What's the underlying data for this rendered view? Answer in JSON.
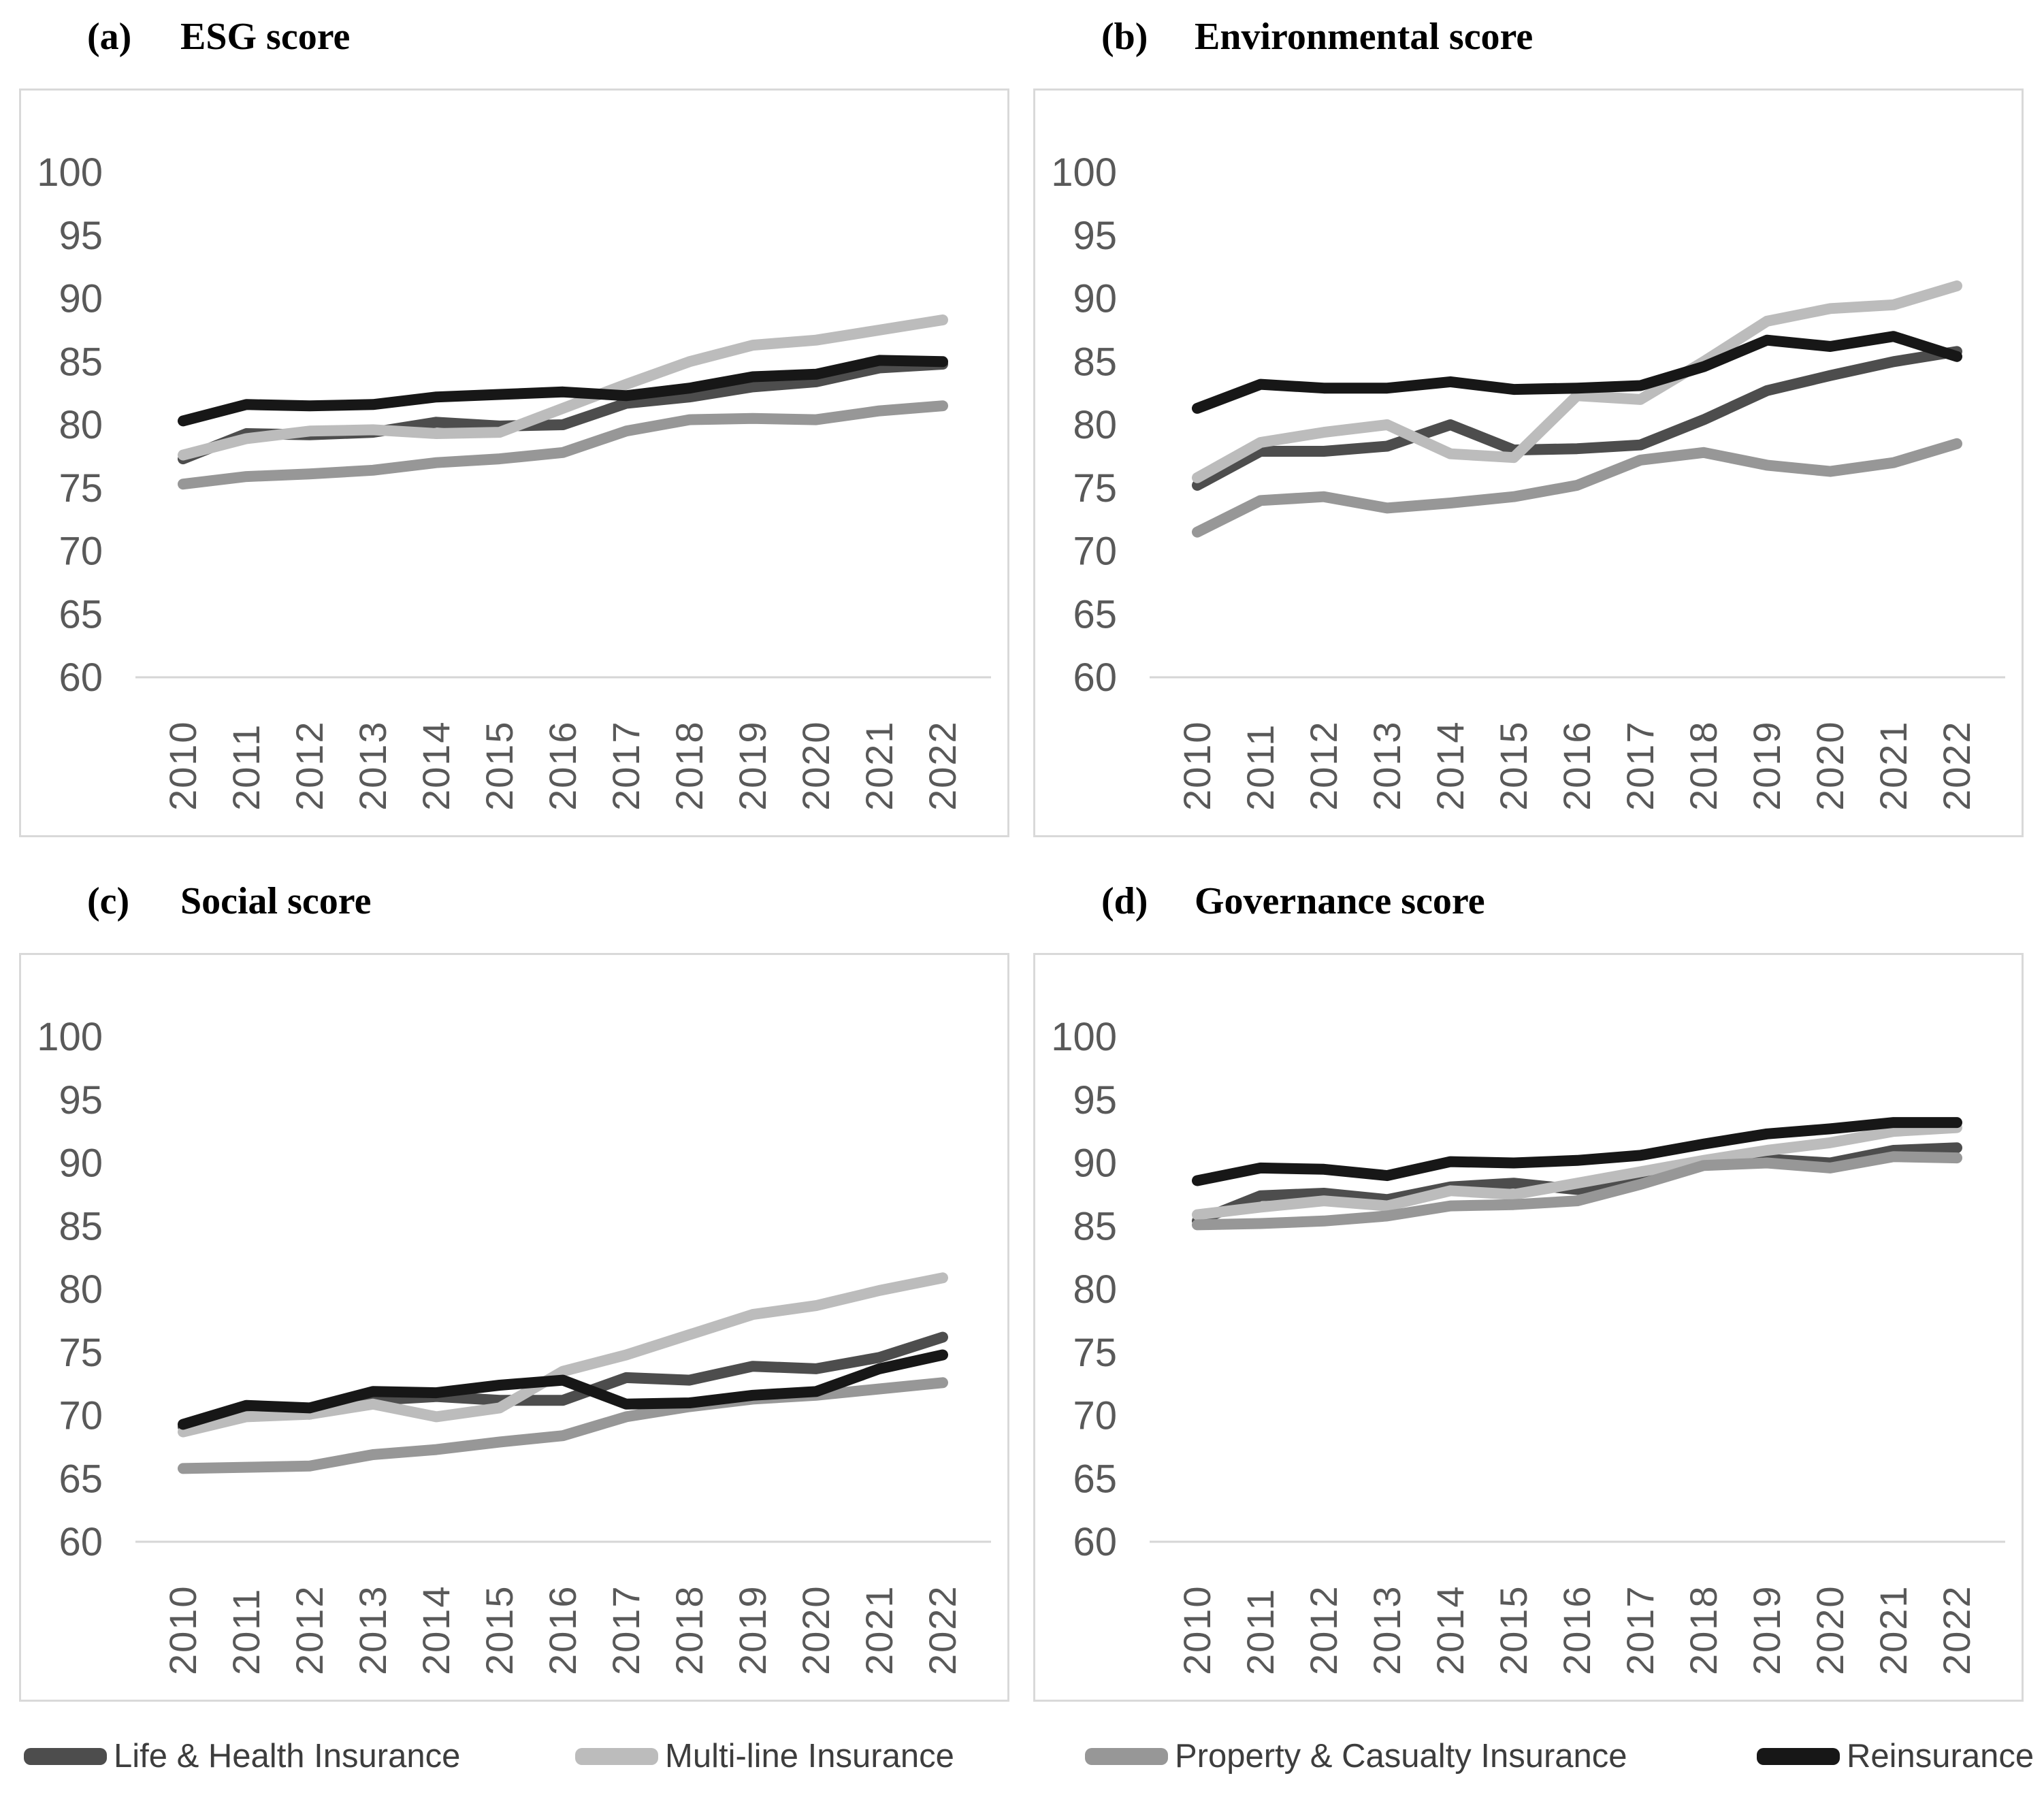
{
  "figure": {
    "background": "#ffffff",
    "box_border_color": "#d9d9d9",
    "baseline_color": "#d6d6d6",
    "tick_label_color": "#595959"
  },
  "chart_data": [
    {
      "type": "line",
      "panel_label": "(a)",
      "title": "ESG score",
      "x": [
        2010,
        2011,
        2012,
        2013,
        2014,
        2015,
        2016,
        2017,
        2018,
        2019,
        2020,
        2021,
        2022
      ],
      "ylim": [
        60,
        100
      ],
      "ytick_step": 5,
      "yticks": [
        100,
        95,
        90,
        85,
        80,
        75,
        70,
        65,
        60
      ],
      "grid": "baseline-only",
      "series": [
        {
          "name": "Life & Health Insurance",
          "color": "#4d4d4d",
          "values": [
            77.3,
            79.3,
            79.2,
            79.4,
            80.2,
            79.9,
            80.0,
            81.7,
            82.2,
            83.0,
            83.4,
            84.5,
            84.8
          ]
        },
        {
          "name": "Multi-line Insurance",
          "color": "#bcbcbc",
          "values": [
            77.6,
            78.9,
            79.5,
            79.6,
            79.3,
            79.4,
            81.3,
            83.2,
            85.0,
            86.3,
            86.7,
            87.5,
            88.3
          ]
        },
        {
          "name": "Property & Casualty Insurance",
          "color": "#979797",
          "values": [
            75.3,
            75.9,
            76.1,
            76.4,
            77.0,
            77.3,
            77.8,
            79.5,
            80.4,
            80.5,
            80.4,
            81.1,
            81.5
          ]
        },
        {
          "name": "Reinsurance",
          "color": "#171717",
          "values": [
            80.3,
            81.6,
            81.5,
            81.6,
            82.2,
            82.4,
            82.6,
            82.3,
            82.9,
            83.8,
            84.0,
            85.1,
            85.0
          ]
        }
      ]
    },
    {
      "type": "line",
      "panel_label": "(b)",
      "title": "Environmental score",
      "x": [
        2010,
        2011,
        2012,
        2013,
        2014,
        2015,
        2016,
        2017,
        2018,
        2019,
        2020,
        2021,
        2022
      ],
      "ylim": [
        60,
        100
      ],
      "ytick_step": 5,
      "yticks": [
        100,
        95,
        90,
        85,
        80,
        75,
        70,
        65,
        60
      ],
      "grid": "baseline-only",
      "series": [
        {
          "name": "Life & Health Insurance",
          "color": "#4d4d4d",
          "values": [
            75.2,
            77.9,
            77.9,
            78.3,
            80.0,
            78.0,
            78.1,
            78.4,
            80.4,
            82.7,
            83.9,
            85.0,
            85.8
          ]
        },
        {
          "name": "Multi-line Insurance",
          "color": "#bcbcbc",
          "values": [
            75.8,
            78.6,
            79.4,
            80.0,
            77.7,
            77.4,
            82.3,
            82.0,
            85.0,
            88.2,
            89.2,
            89.5,
            91.0
          ]
        },
        {
          "name": "Property & Casualty Insurance",
          "color": "#979797",
          "values": [
            71.5,
            74.0,
            74.3,
            73.4,
            73.8,
            74.3,
            75.2,
            77.2,
            77.8,
            76.8,
            76.3,
            77.0,
            78.5
          ]
        },
        {
          "name": "Reinsurance",
          "color": "#171717",
          "values": [
            81.3,
            83.2,
            82.9,
            82.9,
            83.4,
            82.8,
            82.9,
            83.1,
            84.6,
            86.7,
            86.2,
            87.0,
            85.4
          ]
        }
      ]
    },
    {
      "type": "line",
      "panel_label": "(c)",
      "title": "Social score",
      "x": [
        2010,
        2011,
        2012,
        2013,
        2014,
        2015,
        2016,
        2017,
        2018,
        2019,
        2020,
        2021,
        2022
      ],
      "ylim": [
        60,
        100
      ],
      "ytick_step": 5,
      "yticks": [
        100,
        95,
        90,
        85,
        80,
        75,
        70,
        65,
        60
      ],
      "grid": "baseline-only",
      "series": [
        {
          "name": "Life & Health Insurance",
          "color": "#4d4d4d",
          "values": [
            69.1,
            70.4,
            70.1,
            71.2,
            71.5,
            71.2,
            71.2,
            73.0,
            72.8,
            73.9,
            73.7,
            74.6,
            76.2
          ]
        },
        {
          "name": "Multi-line Insurance",
          "color": "#bcbcbc",
          "values": [
            68.7,
            69.9,
            70.1,
            70.9,
            69.9,
            70.6,
            73.5,
            74.8,
            76.4,
            78.0,
            78.7,
            79.9,
            80.9
          ]
        },
        {
          "name": "Property & Casualty Insurance",
          "color": "#979797",
          "values": [
            65.8,
            65.9,
            66.0,
            66.9,
            67.3,
            67.9,
            68.4,
            69.9,
            70.7,
            71.3,
            71.6,
            72.1,
            72.6
          ]
        },
        {
          "name": "Reinsurance",
          "color": "#171717",
          "values": [
            69.3,
            70.8,
            70.6,
            71.9,
            71.8,
            72.4,
            72.8,
            70.9,
            71.0,
            71.6,
            71.9,
            73.7,
            74.8
          ]
        }
      ]
    },
    {
      "type": "line",
      "panel_label": "(d)",
      "title": "Governance score",
      "x": [
        2010,
        2011,
        2012,
        2013,
        2014,
        2015,
        2016,
        2017,
        2018,
        2019,
        2020,
        2021,
        2022
      ],
      "ylim": [
        60,
        100
      ],
      "ytick_step": 5,
      "yticks": [
        100,
        95,
        90,
        85,
        80,
        75,
        70,
        65,
        60
      ],
      "grid": "baseline-only",
      "series": [
        {
          "name": "Life & Health Insurance",
          "color": "#4d4d4d",
          "values": [
            85.4,
            87.4,
            87.6,
            87.1,
            88.1,
            88.4,
            87.9,
            89.0,
            90.0,
            90.3,
            90.0,
            91.0,
            91.2
          ]
        },
        {
          "name": "Multi-line Insurance",
          "color": "#bcbcbc",
          "values": [
            85.9,
            86.5,
            87.0,
            86.6,
            87.8,
            87.5,
            88.4,
            89.3,
            90.2,
            91.0,
            91.6,
            92.5,
            92.8
          ]
        },
        {
          "name": "Property & Casualty Insurance",
          "color": "#979797",
          "values": [
            85.1,
            85.2,
            85.4,
            85.8,
            86.6,
            86.7,
            87.0,
            88.3,
            89.8,
            90.0,
            89.6,
            90.5,
            90.4
          ]
        },
        {
          "name": "Reinsurance",
          "color": "#171717",
          "values": [
            88.6,
            89.6,
            89.5,
            89.0,
            90.1,
            90.0,
            90.2,
            90.6,
            91.5,
            92.3,
            92.7,
            93.2,
            93.2
          ]
        }
      ]
    }
  ],
  "legend": {
    "items": [
      {
        "label": "Life & Health Insurance",
        "color": "#4d4d4d"
      },
      {
        "label": "Multi-line Insurance",
        "color": "#bcbcbc"
      },
      {
        "label": "Property & Casualty Insurance",
        "color": "#979797"
      },
      {
        "label": "Reinsurance",
        "color": "#171717"
      }
    ]
  }
}
